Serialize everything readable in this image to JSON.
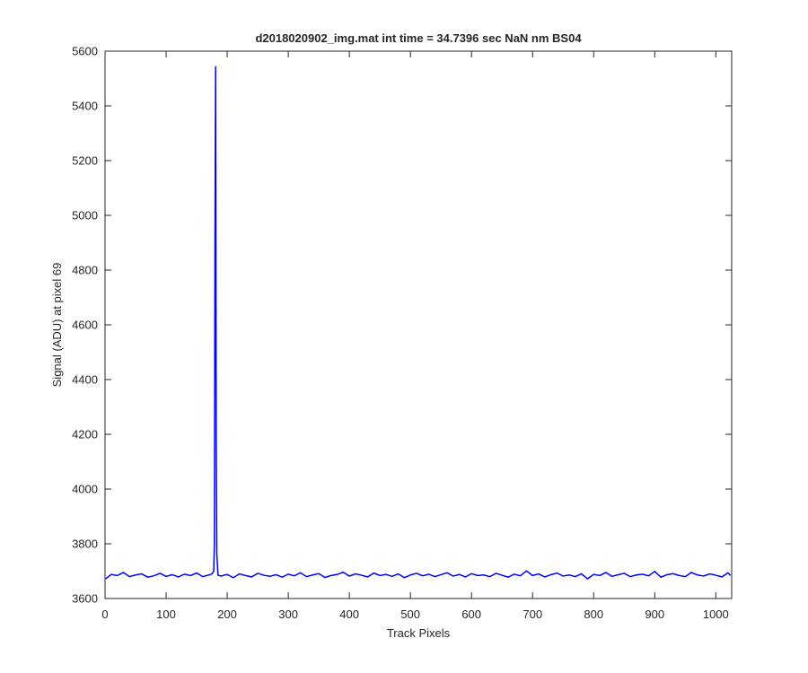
{
  "chart_data": {
    "type": "line",
    "title": "d2018020902_img.mat int time = 34.7396 sec  NaN nm BS04",
    "x_label": "Track Pixels",
    "y_label": "Signal (ADU) at pixel 69",
    "color": "#0000ff",
    "xlim": [
      0,
      1026
    ],
    "ylim": [
      3600,
      5600
    ],
    "xticks": [
      0,
      100,
      200,
      300,
      400,
      500,
      600,
      700,
      800,
      900,
      1000
    ],
    "yticks": [
      3600,
      3800,
      4000,
      4200,
      4400,
      4600,
      4800,
      5000,
      5200,
      5400,
      5600
    ],
    "grid": false,
    "x": [
      1,
      10,
      20,
      30,
      40,
      50,
      60,
      70,
      80,
      90,
      100,
      110,
      120,
      130,
      140,
      150,
      160,
      170,
      175,
      178,
      179,
      180,
      181,
      182,
      183,
      185,
      190,
      200,
      210,
      220,
      230,
      240,
      250,
      260,
      270,
      280,
      290,
      300,
      310,
      320,
      330,
      340,
      350,
      360,
      370,
      380,
      390,
      400,
      410,
      420,
      430,
      440,
      450,
      460,
      470,
      480,
      490,
      500,
      510,
      520,
      530,
      540,
      550,
      560,
      570,
      580,
      590,
      600,
      610,
      620,
      630,
      640,
      650,
      660,
      670,
      680,
      690,
      700,
      710,
      720,
      730,
      740,
      750,
      760,
      770,
      780,
      790,
      800,
      810,
      820,
      830,
      840,
      850,
      860,
      870,
      880,
      890,
      900,
      910,
      920,
      930,
      940,
      950,
      960,
      970,
      980,
      990,
      1000,
      1010,
      1020,
      1024
    ],
    "values": [
      3672,
      3688,
      3684,
      3695,
      3680,
      3686,
      3690,
      3678,
      3683,
      3692,
      3681,
      3687,
      3679,
      3689,
      3684,
      3693,
      3680,
      3686,
      3690,
      3700,
      3800,
      4900,
      5545,
      4200,
      3760,
      3685,
      3682,
      3688,
      3676,
      3690,
      3684,
      3679,
      3692,
      3685,
      3681,
      3687,
      3678,
      3689,
      3683,
      3694,
      3680,
      3686,
      3691,
      3677,
      3684,
      3688,
      3696,
      3682,
      3690,
      3685,
      3679,
      3693,
      3684,
      3688,
      3681,
      3690,
      3676,
      3686,
      3692,
      3683,
      3689,
      3680,
      3687,
      3694,
      3682,
      3688,
      3679,
      3691,
      3684,
      3686,
      3680,
      3692,
      3685,
      3678,
      3689,
      3683,
      3701,
      3684,
      3690,
      3679,
      3687,
      3693,
      3682,
      3686,
      3680,
      3690,
      3672,
      3688,
      3684,
      3695,
      3681,
      3687,
      3692,
      3680,
      3686,
      3689,
      3683,
      3699,
      3678,
      3687,
      3691,
      3684,
      3680,
      3695,
      3686,
      3682,
      3690,
      3685,
      3679,
      3694,
      3684
    ]
  }
}
